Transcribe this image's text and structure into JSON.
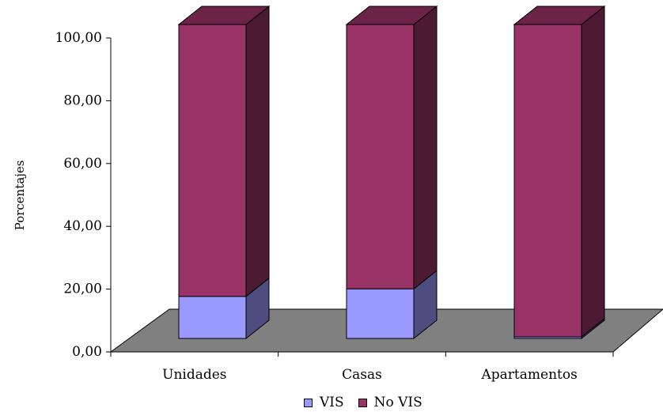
{
  "chart_data": {
    "type": "bar",
    "stacked": true,
    "three_d": true,
    "categories": [
      "Unidades",
      "Casas",
      "Apartamentos"
    ],
    "series": [
      {
        "name": "VIS",
        "values": [
          13.4,
          15.8,
          0.5
        ],
        "color": "#9999ff"
      },
      {
        "name": "No VIS",
        "values": [
          86.6,
          84.2,
          99.5
        ],
        "color": "#993366"
      }
    ],
    "ylabel": "Porcentajes",
    "xlabel": "",
    "title": "",
    "ylim": [
      0,
      100
    ],
    "yticks": [
      "0,00",
      "20,00",
      "40,00",
      "60,00",
      "80,00",
      "100,00"
    ],
    "grid": false,
    "legend_position": "bottom",
    "floor_color": "#808080"
  }
}
